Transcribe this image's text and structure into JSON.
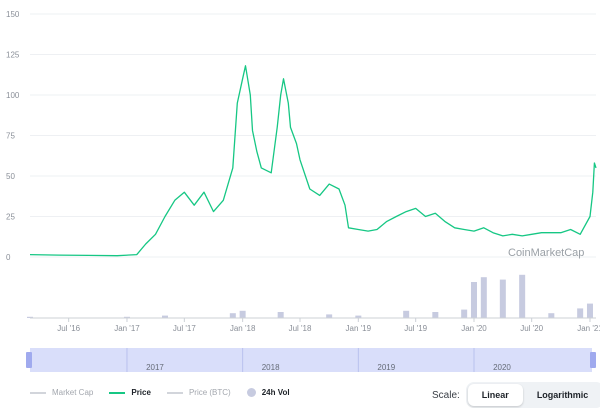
{
  "chart_data": {
    "type": "line",
    "watermark": "CoinMarketCap",
    "y_ticks": [
      "0",
      "25",
      "50",
      "75",
      "100",
      "125",
      "150"
    ],
    "ylim": [
      0,
      150
    ],
    "x_ticks": [
      "Jul '16",
      "Jan '17",
      "Jul '17",
      "Jan '18",
      "Jul '18",
      "Jan '19",
      "Jul '19",
      "Jan '20",
      "Jul '20",
      "Jan '21"
    ],
    "navigator_ticks": [
      "2017",
      "2018",
      "2019",
      "2020"
    ],
    "grid": true,
    "series": [
      {
        "name": "Price",
        "color": "#16c784",
        "x": [
          "2016-03",
          "2016-06",
          "2016-09",
          "2016-12",
          "2017-02",
          "2017-03",
          "2017-04",
          "2017-05",
          "2017-06",
          "2017-07",
          "2017-08",
          "2017-09",
          "2017-10",
          "2017-11",
          "2017-12",
          "2017-12-15",
          "2018-01",
          "2018-01-10",
          "2018-01-25",
          "2018-02",
          "2018-02-15",
          "2018-03",
          "2018-04",
          "2018-04-20",
          "2018-05",
          "2018-05-10",
          "2018-05-25",
          "2018-06",
          "2018-06-20",
          "2018-07",
          "2018-08",
          "2018-09",
          "2018-10",
          "2018-11",
          "2018-11-20",
          "2018-12",
          "2019-01",
          "2019-02",
          "2019-03",
          "2019-04",
          "2019-05",
          "2019-06",
          "2019-07",
          "2019-08",
          "2019-09",
          "2019-10",
          "2019-11",
          "2019-12",
          "2020-01",
          "2020-02",
          "2020-03",
          "2020-04",
          "2020-05",
          "2020-06",
          "2020-07",
          "2020-08",
          "2020-09",
          "2020-10",
          "2020-11",
          "2020-12",
          "2021-01",
          "2021-01-10",
          "2021-01-15",
          "2021-01-20"
        ],
        "values": [
          1.5,
          1.2,
          1.0,
          0.8,
          1.5,
          8,
          14,
          25,
          35,
          40,
          32,
          40,
          28,
          35,
          55,
          95,
          110,
          118,
          100,
          78,
          65,
          55,
          52,
          80,
          100,
          110,
          95,
          80,
          70,
          60,
          42,
          38,
          45,
          42,
          32,
          18,
          17,
          16,
          17,
          22,
          25,
          28,
          30,
          25,
          27,
          22,
          18,
          17,
          16,
          18,
          15,
          13,
          14,
          13,
          14,
          15,
          15,
          15,
          17,
          14,
          25,
          40,
          58,
          55
        ]
      },
      {
        "name": "24h Vol",
        "color": "#c7cbe0",
        "x": [
          "2016-03",
          "2017-01",
          "2017-05",
          "2017-12",
          "2018-01",
          "2018-05",
          "2018-10",
          "2019-01",
          "2019-06",
          "2019-09",
          "2019-12",
          "2020-01",
          "2020-02",
          "2020-04",
          "2020-06",
          "2020-09",
          "2020-12",
          "2021-01"
        ],
        "values": [
          1,
          1,
          2,
          4,
          6,
          5,
          3,
          2,
          6,
          5,
          7,
          30,
          34,
          32,
          36,
          4,
          8,
          12
        ]
      }
    ]
  },
  "legend": {
    "market_cap": "Market Cap",
    "price": "Price",
    "price_btc": "Price (BTC)",
    "volume": "24h Vol"
  },
  "scale": {
    "label": "Scale:",
    "linear": "Linear",
    "logarithmic": "Logarithmic",
    "selected": "linear"
  },
  "colors": {
    "price": "#16c784",
    "volume": "#c7cbe0",
    "navigator": "#d9defa",
    "handle": "#a0aaee",
    "grid": "#eef0f3",
    "inactive": "#d2d5db"
  }
}
